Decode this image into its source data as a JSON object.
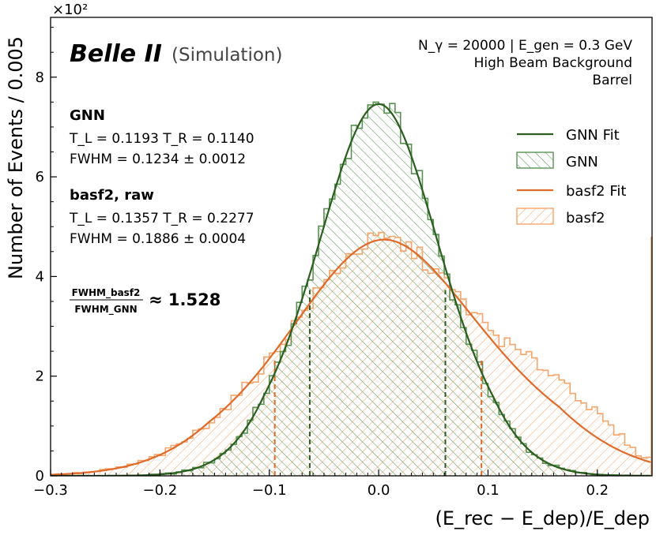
{
  "chart_data": {
    "type": "histogram",
    "xlabel": "(E_rec − E_dep)/E_dep",
    "ylabel": "Number of Events / 0.005",
    "y_multiplier": "×10²",
    "xlim": [
      -0.3,
      0.25
    ],
    "ylim": [
      0,
      9.2
    ],
    "bin_width": 0.005,
    "x_ticks": [
      -0.3,
      -0.2,
      -0.1,
      0.0,
      0.1,
      0.2
    ],
    "x_tick_labels": [
      "−0.3",
      "−0.2",
      "−0.1",
      "0.0",
      "0.1",
      "0.2"
    ],
    "y_ticks": [
      0,
      2,
      4,
      6,
      8
    ],
    "y_tick_labels": [
      "0",
      "2",
      "4",
      "6",
      "8"
    ],
    "branding": {
      "experiment": "Belle II",
      "tag": "(Simulation)"
    },
    "conditions": [
      "N_γ = 20000 | E_gen = 0.3 GeV",
      "High Beam Background",
      "Barrel"
    ],
    "annotations": {
      "gnn_title": "GNN",
      "gnn_tails": "T_L = 0.1193    T_R = 0.1140",
      "gnn_fwhm": "FWHM = 0.1234 ± 0.0012",
      "basf2_title": "basf2, raw",
      "basf2_tails": "T_L = 0.1357    T_R = 0.2277",
      "basf2_fwhm": "FWHM = 0.1886 ± 0.0004",
      "ratio_num": "FWHM_basf2",
      "ratio_den": "FWHM_GNN",
      "ratio_value": "≈ 1.528"
    },
    "legend": {
      "placement": "right",
      "entries": [
        "GNN Fit",
        "GNN",
        "basf2 Fit",
        "basf2"
      ]
    },
    "series": [
      {
        "name": "GNN",
        "kind": "histogram",
        "color": "#5a9254",
        "hatch": "\\\\",
        "fit": {
          "label": "GNN Fit",
          "color": "#2b5e1f",
          "peak": 7.46,
          "mu": 0.0,
          "fwhm": 0.1234,
          "tail_left": 0.1193,
          "tail_right": 0.114
        },
        "half_max_markers": [
          -0.063,
          0.061
        ]
      },
      {
        "name": "basf2",
        "kind": "histogram",
        "color": "#f5a56b",
        "hatch": "//",
        "fit": {
          "label": "basf2 Fit",
          "color": "#e06a2a",
          "peak": 4.74,
          "mu": 0.005,
          "fwhm": 0.1886,
          "tail_left": 0.1357,
          "tail_right": 0.2277
        },
        "half_max_markers": [
          -0.095,
          0.094
        ],
        "overflow_edge": {
          "x": 0.25,
          "value": 4.8
        }
      }
    ]
  },
  "colors": {
    "gnn_hist": "#5a9254",
    "gnn_fit": "#2b5e1f",
    "basf2_hist": "#f5a56b",
    "basf2_fit": "#e06a2a",
    "axis": "#000000"
  }
}
